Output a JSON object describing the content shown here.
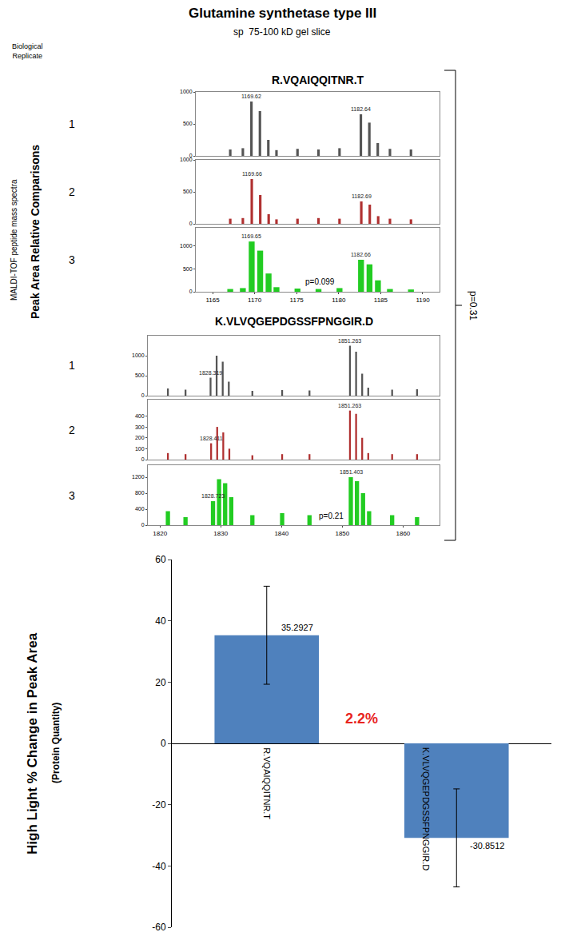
{
  "header": {
    "title": "Glutamine synthetase type III",
    "subtitle": "sp  75-100 kD gel slice",
    "replicate_heading": "Biological Replicate",
    "side_labels": [
      "MALDI-TOF peptide mass spectra",
      "Peak Area Relative Comparisons"
    ],
    "overall_p": "p=0.31"
  },
  "chart_data": [
    {
      "type": "spectrum",
      "title": "R.VQAIQQITNR.T",
      "p_label": "p=0.099",
      "xlim": [
        1163,
        1192
      ],
      "xticks": [
        1165,
        1170,
        1175,
        1180,
        1185,
        1190
      ],
      "series": [
        {
          "name": "1",
          "color": "#555555",
          "x": [
            1167.1,
            1168.6,
            1169.62,
            1170.63,
            1171.63,
            1172.6,
            1175.1,
            1177.6,
            1180.1,
            1182.64,
            1183.65,
            1184.65,
            1186.1,
            1188.6
          ],
          "values": [
            100,
            120,
            850,
            700,
            250,
            90,
            110,
            100,
            120,
            650,
            520,
            200,
            110,
            100
          ],
          "ylim": [
            0,
            1000
          ],
          "yticks": [
            0,
            500,
            1000
          ],
          "peak_labels": [
            1169.62,
            1182.64
          ]
        },
        {
          "name": "2",
          "color": "#b03030",
          "x": [
            1167.1,
            1168.6,
            1169.66,
            1170.67,
            1171.67,
            1172.6,
            1175.1,
            1177.6,
            1180.1,
            1182.69,
            1183.7,
            1184.7,
            1186.1,
            1188.6
          ],
          "values": [
            80,
            90,
            700,
            450,
            150,
            70,
            80,
            90,
            80,
            350,
            300,
            120,
            80,
            70
          ],
          "ylim": [
            0,
            1000
          ],
          "yticks": [
            0,
            500,
            1000
          ],
          "peak_labels": [
            1169.66,
            1182.69
          ]
        },
        {
          "name": "3",
          "color": "#22cc22",
          "x": [
            1167.1,
            1168.6,
            1169.65,
            1170.66,
            1171.66,
            1172.6,
            1175.1,
            1177.6,
            1180.1,
            1182.66,
            1183.67,
            1184.67,
            1186.1,
            1188.6
          ],
          "values": [
            60,
            80,
            1100,
            900,
            400,
            100,
            70,
            60,
            80,
            700,
            600,
            250,
            60,
            50
          ],
          "ylim": [
            0,
            1400
          ],
          "yticks": [
            0,
            500,
            1000
          ],
          "peak_labels": [
            1169.65,
            1182.66
          ]
        }
      ]
    },
    {
      "type": "spectrum",
      "title": "K.VLVQGEPDGSSFPNGGIR.D",
      "p_label": "p=0.21",
      "xlim": [
        1818,
        1866
      ],
      "xticks": [
        1820,
        1830,
        1840,
        1850,
        1860
      ],
      "series": [
        {
          "name": "1",
          "color": "#555555",
          "x": [
            1821.3,
            1824.2,
            1828.319,
            1829.32,
            1830.32,
            1831.32,
            1835.2,
            1840.1,
            1844.6,
            1851.263,
            1852.27,
            1853.27,
            1854.27,
            1858.2,
            1862.3
          ],
          "values": [
            180,
            150,
            450,
            1000,
            850,
            350,
            120,
            140,
            130,
            1250,
            1100,
            550,
            200,
            150,
            160
          ],
          "ylim": [
            0,
            1500
          ],
          "yticks": [
            0,
            500,
            1000
          ],
          "peak_labels": [
            1828.319,
            1851.263
          ]
        },
        {
          "name": "2",
          "color": "#b03030",
          "x": [
            1821.3,
            1824.2,
            1828.411,
            1829.41,
            1830.41,
            1831.41,
            1835.2,
            1840.1,
            1844.6,
            1851.263,
            1852.27,
            1853.27,
            1854.27,
            1858.2,
            1862.3
          ],
          "values": [
            60,
            50,
            150,
            300,
            250,
            100,
            40,
            50,
            50,
            450,
            420,
            200,
            60,
            50,
            50
          ],
          "ylim": [
            0,
            550
          ],
          "yticks": [
            0,
            100,
            200,
            300,
            400
          ],
          "peak_labels": [
            1828.411,
            1851.263
          ]
        },
        {
          "name": "3",
          "color": "#22cc22",
          "x": [
            1821.3,
            1824.2,
            1828.723,
            1829.72,
            1830.72,
            1831.72,
            1835.2,
            1840.1,
            1844.6,
            1851.403,
            1852.41,
            1853.41,
            1854.41,
            1858.2,
            1862.3
          ],
          "values": [
            350,
            200,
            600,
            1150,
            1050,
            700,
            250,
            300,
            250,
            1200,
            1100,
            800,
            350,
            250,
            200
          ],
          "ylim": [
            0,
            1500
          ],
          "yticks": [
            0,
            400,
            800,
            1200
          ],
          "peak_labels": [
            1828.723,
            1851.403
          ]
        }
      ]
    },
    {
      "type": "bar",
      "y_label": "High Light % Change in Peak Area",
      "y_sublabel": "(Protein Quantity)",
      "categories": [
        "R.VQAIQQITNR.T",
        "K.VLVQGEPDGSSFPNGGIR.D"
      ],
      "values": [
        35.2927,
        -30.8512
      ],
      "errors": [
        16,
        16
      ],
      "color": "#4f81bd",
      "ylim": [
        -60,
        60
      ],
      "yticks": [
        -60,
        -40,
        -20,
        0,
        20,
        40,
        60
      ],
      "data_labels": true,
      "grid": false,
      "annotations": [
        {
          "text": "2.2%",
          "x": 0.5,
          "y": 8,
          "color": "#e8251f"
        }
      ]
    }
  ]
}
